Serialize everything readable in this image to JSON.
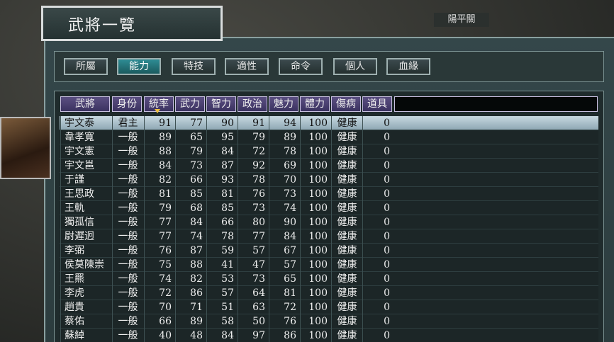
{
  "header": {
    "title": "武將一覽",
    "location": "陽平關"
  },
  "tabs": [
    "所屬",
    "能力",
    "特技",
    "適性",
    "命令",
    "個人",
    "血緣"
  ],
  "active_tab": 1,
  "table": {
    "columns": [
      "武將",
      "身份",
      "統率",
      "武力",
      "智力",
      "政治",
      "魅力",
      "體力",
      "傷病",
      "道具"
    ],
    "rows": [
      [
        "宇文泰",
        "君主",
        91,
        77,
        90,
        91,
        94,
        100,
        "健康",
        0
      ],
      [
        "韋孝寬",
        "一般",
        89,
        65,
        95,
        79,
        89,
        100,
        "健康",
        0
      ],
      [
        "宇文憲",
        "一般",
        88,
        79,
        84,
        72,
        78,
        100,
        "健康",
        0
      ],
      [
        "宇文邕",
        "一般",
        84,
        73,
        87,
        92,
        69,
        100,
        "健康",
        0
      ],
      [
        "于謹",
        "一般",
        82,
        66,
        93,
        78,
        70,
        100,
        "健康",
        0
      ],
      [
        "王思政",
        "一般",
        81,
        85,
        81,
        76,
        73,
        100,
        "健康",
        0
      ],
      [
        "王軌",
        "一般",
        79,
        68,
        85,
        73,
        74,
        100,
        "健康",
        0
      ],
      [
        "獨孤信",
        "一般",
        77,
        84,
        66,
        80,
        90,
        100,
        "健康",
        0
      ],
      [
        "尉遲迥",
        "一般",
        77,
        74,
        78,
        77,
        84,
        100,
        "健康",
        0
      ],
      [
        "李弼",
        "一般",
        76,
        87,
        59,
        57,
        67,
        100,
        "健康",
        0
      ],
      [
        "侯莫陳崇",
        "一般",
        75,
        88,
        41,
        47,
        57,
        100,
        "健康",
        0
      ],
      [
        "王羆",
        "一般",
        74,
        82,
        53,
        73,
        65,
        100,
        "健康",
        0
      ],
      [
        "李虎",
        "一般",
        72,
        86,
        57,
        64,
        81,
        100,
        "健康",
        0
      ],
      [
        "趙貴",
        "一般",
        70,
        71,
        51,
        63,
        72,
        100,
        "健康",
        0
      ],
      [
        "蔡佑",
        "一般",
        66,
        89,
        58,
        50,
        76,
        100,
        "健康",
        0
      ],
      [
        "蘇綽",
        "一般",
        40,
        48,
        84,
        97,
        86,
        100,
        "健康",
        0
      ]
    ]
  }
}
